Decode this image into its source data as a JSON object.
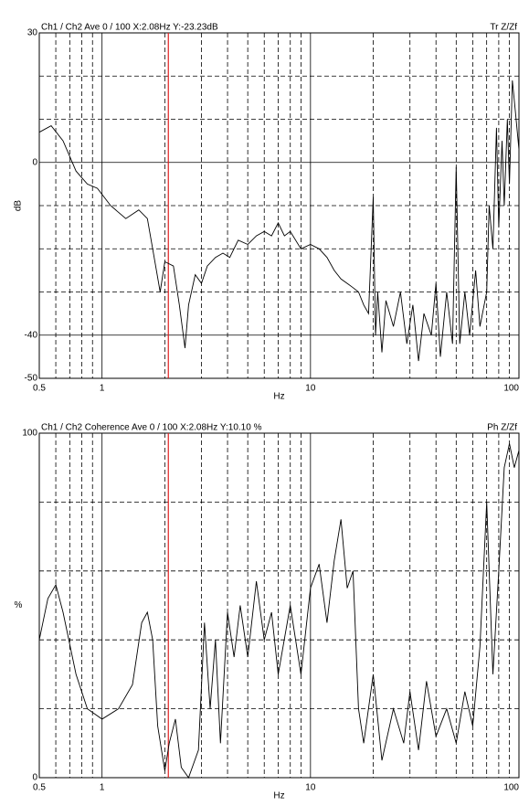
{
  "chart_data": [
    {
      "type": "line",
      "title": "Ch1 / Ch2  Ave 0 / 100  X:2.08Hz  Y:-23.23dB",
      "mode_label": "Tr Z/Zf",
      "xlabel": "Hz",
      "ylabel": "dB",
      "log_x": true,
      "cursor_x": 2.08,
      "cursor_color": "#e02020",
      "color": "#000000",
      "xlim": [
        0.5,
        100
      ],
      "xticks": [
        0.5,
        1,
        10,
        100
      ],
      "xgrid": [
        0.6,
        0.7,
        0.8,
        0.9,
        2,
        3,
        4,
        5,
        6,
        7,
        8,
        9,
        20,
        30,
        40,
        50,
        60,
        70,
        80,
        90
      ],
      "ylim": [
        -50,
        30
      ],
      "yticks": [
        30,
        0,
        -40,
        -50
      ],
      "ygrid": [
        20,
        10,
        -10,
        -20,
        -30
      ],
      "x": [
        0.5,
        0.57,
        0.65,
        0.75,
        0.85,
        0.95,
        1.1,
        1.3,
        1.5,
        1.65,
        1.75,
        1.9,
        2.0,
        2.2,
        2.35,
        2.5,
        2.6,
        2.8,
        3.0,
        3.2,
        3.5,
        3.8,
        4.1,
        4.5,
        5,
        5.5,
        6,
        6.5,
        7,
        7.5,
        8,
        9,
        10,
        11,
        12,
        13,
        14,
        15,
        16,
        17,
        18,
        19,
        20,
        20.5,
        21,
        22,
        23,
        25,
        27,
        29,
        31,
        33,
        35,
        38,
        40,
        42,
        45,
        48,
        50,
        52,
        55,
        58,
        62,
        65,
        70,
        72,
        75,
        78,
        80,
        83,
        85,
        88,
        90,
        93,
        96,
        100
      ],
      "values": [
        7,
        8.5,
        5,
        -2,
        -5,
        -6,
        -10,
        -13,
        -11,
        -13,
        -20,
        -30,
        -23,
        -24,
        -33,
        -43,
        -33,
        -26,
        -28,
        -24,
        -22,
        -21,
        -22,
        -18,
        -19,
        -17,
        -16,
        -17,
        -14,
        -17,
        -16,
        -20,
        -19,
        -20,
        -22,
        -25,
        -27,
        -28,
        -29,
        -30,
        -33,
        -35,
        -8,
        -40,
        -30,
        -44,
        -32,
        -38,
        -30,
        -42,
        -33,
        -46,
        -35,
        -40,
        -28,
        -45,
        -30,
        -42,
        -1,
        -42,
        -30,
        -40,
        -25,
        -38,
        -30,
        -10,
        -20,
        8,
        -15,
        5,
        -10,
        10,
        -5,
        19,
        12,
        3
      ]
    },
    {
      "type": "line",
      "title": "Ch1 / Ch2  Coherence Ave 0 / 100  X:2.08Hz  Y:10.10 %",
      "mode_label": "Ph Z/Zf",
      "xlabel": "Hz",
      "ylabel": "%",
      "log_x": true,
      "cursor_x": 2.08,
      "cursor_color": "#e02020",
      "color": "#000000",
      "xlim": [
        0.5,
        100
      ],
      "xticks": [
        0.5,
        1,
        10,
        100
      ],
      "xgrid": [
        0.6,
        0.7,
        0.8,
        0.9,
        2,
        3,
        4,
        5,
        6,
        7,
        8,
        9,
        20,
        30,
        40,
        50,
        60,
        70,
        80,
        90
      ],
      "ylim": [
        0,
        100
      ],
      "yticks": [
        100,
        0
      ],
      "ygrid": [
        80,
        60,
        40,
        20
      ],
      "x": [
        0.5,
        0.55,
        0.6,
        0.65,
        0.75,
        0.85,
        1.0,
        1.2,
        1.4,
        1.55,
        1.65,
        1.75,
        1.85,
        2.0,
        2.1,
        2.25,
        2.4,
        2.6,
        2.9,
        3.1,
        3.3,
        3.5,
        3.7,
        4.0,
        4.3,
        4.6,
        5,
        5.5,
        6,
        6.5,
        7,
        8,
        9,
        10,
        11,
        12,
        13,
        14,
        15,
        16,
        17,
        18,
        20,
        22,
        25,
        28,
        30,
        33,
        36,
        40,
        45,
        50,
        55,
        60,
        65,
        70,
        75,
        80,
        85,
        90,
        95,
        100
      ],
      "values": [
        40,
        52,
        56,
        48,
        30,
        20,
        17,
        20,
        27,
        45,
        48,
        40,
        15,
        2,
        10,
        17,
        3,
        0,
        8,
        45,
        20,
        40,
        10,
        48,
        35,
        50,
        35,
        57,
        40,
        48,
        30,
        50,
        30,
        55,
        62,
        45,
        63,
        75,
        55,
        60,
        20,
        10,
        30,
        5,
        20,
        10,
        25,
        8,
        28,
        12,
        20,
        10,
        25,
        15,
        38,
        80,
        30,
        60,
        90,
        97,
        90,
        95
      ]
    }
  ]
}
